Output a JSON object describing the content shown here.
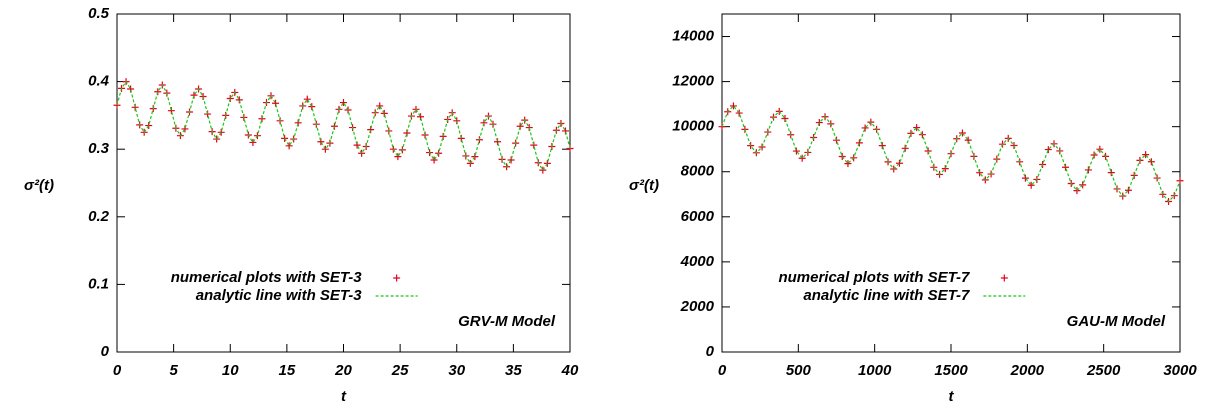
{
  "chart_data": [
    {
      "type": "line",
      "xlabel": "t",
      "ylabel": "σ²(t)",
      "annotation": "GRV-M Model",
      "xlim": [
        0,
        40
      ],
      "ylim": [
        0,
        0.5
      ],
      "xticks": [
        0,
        5,
        10,
        15,
        20,
        25,
        30,
        35,
        40
      ],
      "yticks": [
        0,
        0.1,
        0.2,
        0.3,
        0.4,
        0.5
      ],
      "x": [
        0,
        0.4,
        0.8,
        1.2,
        1.6,
        2,
        2.4,
        2.8,
        3.2,
        3.6,
        4,
        4.4,
        4.8,
        5.2,
        5.6,
        6,
        6.4,
        6.8,
        7.2,
        7.6,
        8,
        8.4,
        8.8,
        9.2,
        9.6,
        10,
        10.4,
        10.8,
        11.2,
        11.6,
        12,
        12.4,
        12.8,
        13.2,
        13.6,
        14,
        14.4,
        14.8,
        15.2,
        15.6,
        16,
        16.4,
        16.8,
        17.2,
        17.6,
        18,
        18.4,
        18.8,
        19.2,
        19.6,
        20,
        20.4,
        20.8,
        21.2,
        21.6,
        22,
        22.4,
        22.8,
        23.2,
        23.6,
        24,
        24.4,
        24.8,
        25.2,
        25.6,
        26,
        26.4,
        26.8,
        27.2,
        27.6,
        28,
        28.4,
        28.8,
        29.2,
        29.6,
        30,
        30.4,
        30.8,
        31.2,
        31.6,
        32,
        32.4,
        32.8,
        33.2,
        33.6,
        34,
        34.4,
        34.8,
        35.2,
        35.6,
        36,
        36.4,
        36.8,
        37.2,
        37.6,
        38,
        38.4,
        38.8,
        39.2,
        39.6,
        40
      ],
      "series": [
        {
          "name": "numerical plots with SET-3",
          "color": "#e8001c",
          "mode": "markers",
          "values": [
            0.365,
            0.39,
            0.4,
            0.389,
            0.362,
            0.336,
            0.325,
            0.335,
            0.36,
            0.385,
            0.395,
            0.383,
            0.357,
            0.331,
            0.32,
            0.33,
            0.355,
            0.38,
            0.389,
            0.378,
            0.352,
            0.326,
            0.315,
            0.325,
            0.35,
            0.375,
            0.384,
            0.373,
            0.347,
            0.321,
            0.31,
            0.32,
            0.345,
            0.369,
            0.379,
            0.368,
            0.342,
            0.316,
            0.305,
            0.315,
            0.339,
            0.364,
            0.374,
            0.363,
            0.337,
            0.311,
            0.3,
            0.309,
            0.334,
            0.359,
            0.369,
            0.358,
            0.332,
            0.306,
            0.294,
            0.304,
            0.329,
            0.354,
            0.364,
            0.353,
            0.327,
            0.3,
            0.289,
            0.299,
            0.324,
            0.349,
            0.359,
            0.348,
            0.321,
            0.295,
            0.284,
            0.294,
            0.319,
            0.344,
            0.354,
            0.342,
            0.316,
            0.29,
            0.279,
            0.289,
            0.314,
            0.339,
            0.349,
            0.337,
            0.311,
            0.285,
            0.274,
            0.284,
            0.309,
            0.334,
            0.343,
            0.332,
            0.306,
            0.28,
            0.269,
            0.279,
            0.304,
            0.328,
            0.338,
            0.327,
            0.301
          ]
        },
        {
          "name": "analytic line with SET-3",
          "color": "#19c819",
          "mode": "dashed",
          "values": [
            0.365,
            0.39,
            0.4,
            0.389,
            0.362,
            0.336,
            0.325,
            0.335,
            0.36,
            0.385,
            0.395,
            0.383,
            0.357,
            0.331,
            0.32,
            0.33,
            0.355,
            0.38,
            0.389,
            0.378,
            0.352,
            0.326,
            0.315,
            0.325,
            0.35,
            0.375,
            0.384,
            0.373,
            0.347,
            0.321,
            0.31,
            0.32,
            0.345,
            0.369,
            0.379,
            0.368,
            0.342,
            0.316,
            0.305,
            0.315,
            0.339,
            0.364,
            0.374,
            0.363,
            0.337,
            0.311,
            0.3,
            0.309,
            0.334,
            0.359,
            0.369,
            0.358,
            0.332,
            0.306,
            0.294,
            0.304,
            0.329,
            0.354,
            0.364,
            0.353,
            0.327,
            0.3,
            0.289,
            0.299,
            0.324,
            0.349,
            0.359,
            0.348,
            0.321,
            0.295,
            0.284,
            0.294,
            0.319,
            0.344,
            0.354,
            0.342,
            0.316,
            0.29,
            0.279,
            0.289,
            0.314,
            0.339,
            0.349,
            0.337,
            0.311,
            0.285,
            0.274,
            0.284,
            0.309,
            0.334,
            0.343,
            0.332,
            0.306,
            0.28,
            0.269,
            0.279,
            0.304,
            0.328,
            0.338,
            0.327,
            0.301
          ]
        }
      ]
    },
    {
      "type": "line",
      "xlabel": "t",
      "ylabel": "σ²(t)",
      "annotation": "GAU-M Model",
      "xlim": [
        0,
        3000
      ],
      "ylim": [
        0,
        15000
      ],
      "xticks": [
        0,
        500,
        1000,
        1500,
        2000,
        2500,
        3000
      ],
      "yticks": [
        0,
        2000,
        4000,
        6000,
        8000,
        10000,
        12000,
        14000
      ],
      "x": [
        0,
        37.5,
        75,
        112.5,
        150,
        187.5,
        225,
        262.5,
        300,
        337.5,
        375,
        412.5,
        450,
        487.5,
        525,
        562.5,
        600,
        637.5,
        675,
        712.5,
        750,
        787.5,
        825,
        862.5,
        900,
        937.5,
        975,
        1012.5,
        1050,
        1087.5,
        1125,
        1162.5,
        1200,
        1237.5,
        1275,
        1312.5,
        1350,
        1387.5,
        1425,
        1462.5,
        1500,
        1537.5,
        1575,
        1612.5,
        1650,
        1687.5,
        1725,
        1762.5,
        1800,
        1837.5,
        1875,
        1912.5,
        1950,
        1987.5,
        2025,
        2062.5,
        2100,
        2137.5,
        2175,
        2212.5,
        2250,
        2287.5,
        2325,
        2362.5,
        2400,
        2437.5,
        2475,
        2512.5,
        2550,
        2587.5,
        2625,
        2662.5,
        2700,
        2737.5,
        2775,
        2812.5,
        2850,
        2887.5,
        2925,
        2962.5,
        3000
      ],
      "series": [
        {
          "name": "numerical plots with SET-7",
          "color": "#e8001c",
          "mode": "markers",
          "values": [
            10000,
            10663,
            10920,
            10603,
            9880,
            9157,
            8840,
            9097,
            9760,
            10423,
            10680,
            10363,
            9640,
            8917,
            8600,
            8857,
            9520,
            10183,
            10440,
            10123,
            9400,
            8677,
            8360,
            8617,
            9280,
            9943,
            10200,
            9883,
            9160,
            8437,
            8120,
            8377,
            9040,
            9703,
            9960,
            9643,
            8920,
            8197,
            7880,
            8137,
            8800,
            9463,
            9720,
            9403,
            8680,
            7957,
            7640,
            7897,
            8560,
            9223,
            9480,
            9163,
            8440,
            7717,
            7400,
            7657,
            8320,
            8983,
            9240,
            8923,
            8200,
            7477,
            7160,
            7417,
            8080,
            8743,
            9000,
            8683,
            7960,
            7237,
            6920,
            7177,
            7840,
            8503,
            8760,
            8443,
            7720,
            6997,
            6680,
            6937,
            7600
          ]
        },
        {
          "name": "analytic line with SET-7",
          "color": "#19c819",
          "mode": "dashed",
          "values": [
            10000,
            10663,
            10920,
            10603,
            9880,
            9157,
            8840,
            9097,
            9760,
            10423,
            10680,
            10363,
            9640,
            8917,
            8600,
            8857,
            9520,
            10183,
            10440,
            10123,
            9400,
            8677,
            8360,
            8617,
            9280,
            9943,
            10200,
            9883,
            9160,
            8437,
            8120,
            8377,
            9040,
            9703,
            9960,
            9643,
            8920,
            8197,
            7880,
            8137,
            8800,
            9463,
            9720,
            9403,
            8680,
            7957,
            7640,
            7897,
            8560,
            9223,
            9480,
            9163,
            8440,
            7717,
            7400,
            7657,
            8320,
            8983,
            9240,
            8923,
            8200,
            7477,
            7160,
            7417,
            8080,
            8743,
            9000,
            8683,
            7960,
            7237,
            6920,
            7177,
            7840,
            8503,
            8760,
            8443,
            7720,
            6997,
            6680,
            6937,
            7600
          ]
        }
      ]
    }
  ]
}
